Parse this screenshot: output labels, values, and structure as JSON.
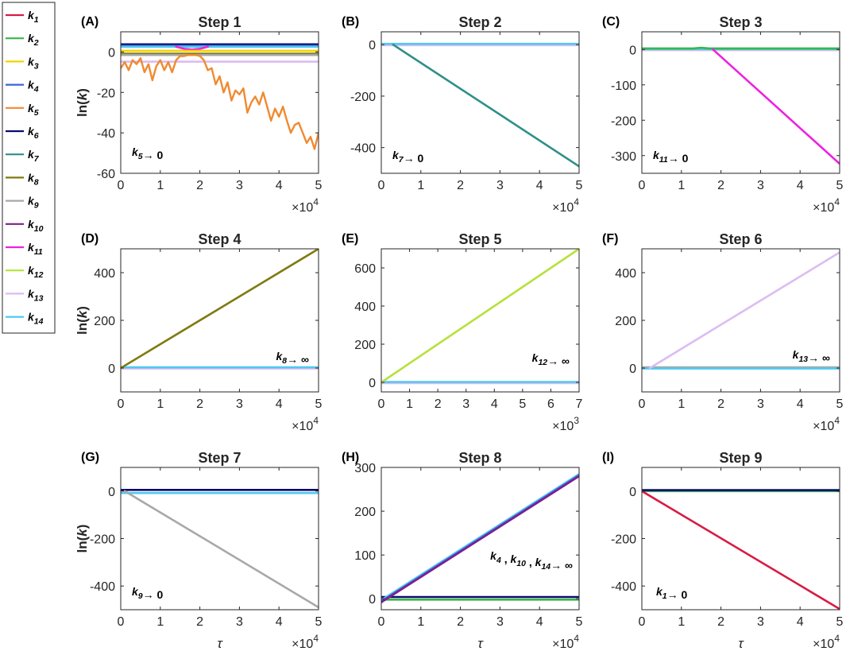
{
  "legend": [
    {
      "key": "k1",
      "base": "k",
      "sub": "1",
      "color": "#d81b45"
    },
    {
      "key": "k2",
      "base": "k",
      "sub": "2",
      "color": "#39b54a"
    },
    {
      "key": "k3",
      "base": "k",
      "sub": "3",
      "color": "#f2d400"
    },
    {
      "key": "k4",
      "base": "k",
      "sub": "4",
      "color": "#3d64d8"
    },
    {
      "key": "k5",
      "base": "k",
      "sub": "5",
      "color": "#f08a30"
    },
    {
      "key": "k6",
      "base": "k",
      "sub": "6",
      "color": "#0a0a6e"
    },
    {
      "key": "k7",
      "base": "k",
      "sub": "7",
      "color": "#2f8f8a"
    },
    {
      "key": "k8",
      "base": "k",
      "sub": "8",
      "color": "#807a10"
    },
    {
      "key": "k9",
      "base": "k",
      "sub": "9",
      "color": "#a8a8a8"
    },
    {
      "key": "k10",
      "base": "k",
      "sub": "10",
      "color": "#7d1e8f"
    },
    {
      "key": "k11",
      "base": "k",
      "sub": "11",
      "color": "#ee22dd"
    },
    {
      "key": "k12",
      "base": "k",
      "sub": "12",
      "color": "#b5e23a"
    },
    {
      "key": "k13",
      "base": "k",
      "sub": "13",
      "color": "#dcbcf2"
    },
    {
      "key": "k14",
      "base": "k",
      "sub": "14",
      "color": "#4fc9f0"
    }
  ],
  "chart_data": [
    {
      "id": "A",
      "label": "(A)",
      "title": "Step 1",
      "type": "line",
      "ylabel": "ln(k)",
      "xlabel": "",
      "xlim": [
        0,
        5
      ],
      "x_multiplier": "×10",
      "x_exponent": "4",
      "ylim": [
        -60,
        10
      ],
      "xticks": [
        0,
        1,
        2,
        3,
        4,
        5
      ],
      "yticks": [
        -60,
        -40,
        -20,
        0
      ],
      "annotation": {
        "base": "k",
        "sub": "5",
        "text": "→ 0"
      },
      "series": [
        {
          "key": "k6",
          "x": [
            0,
            5
          ],
          "y": [
            3.8,
            3.8
          ]
        },
        {
          "key": "k4",
          "x": [
            0,
            5
          ],
          "y": [
            3.0,
            3.0
          ]
        },
        {
          "key": "k14",
          "x": [
            0,
            5
          ],
          "y": [
            2.6,
            2.6
          ]
        },
        {
          "key": "k11",
          "x": [
            1.4,
            1.6,
            1.8,
            2.0,
            2.2
          ],
          "y": [
            2.6,
            1.6,
            1.2,
            1.6,
            2.6
          ]
        },
        {
          "key": "k3",
          "x": [
            0,
            5
          ],
          "y": [
            0.6,
            0.6
          ]
        },
        {
          "key": "k8",
          "x": [
            0,
            5
          ],
          "y": [
            -0.8,
            -0.8
          ]
        },
        {
          "key": "k9",
          "x": [
            0,
            5
          ],
          "y": [
            -1.5,
            -1.5
          ]
        },
        {
          "key": "k13",
          "x": [
            0,
            5
          ],
          "y": [
            -4.8,
            -4.8
          ]
        },
        {
          "key": "k5",
          "x": [
            0,
            0.1,
            0.2,
            0.3,
            0.4,
            0.5,
            0.6,
            0.7,
            0.8,
            0.9,
            1.0,
            1.1,
            1.2,
            1.3,
            1.4,
            1.5,
            1.6,
            1.7,
            1.8,
            1.9,
            2.0,
            2.1,
            2.2,
            2.3,
            2.4,
            2.5,
            2.6,
            2.7,
            2.8,
            2.9,
            3.0,
            3.1,
            3.2,
            3.3,
            3.4,
            3.5,
            3.6,
            3.7,
            3.8,
            3.9,
            4.0,
            4.1,
            4.2,
            4.3,
            4.4,
            4.5,
            4.6,
            4.7,
            4.8,
            4.9,
            5.0
          ],
          "y": [
            -8,
            -5,
            -9,
            -4,
            -6,
            -3,
            -10,
            -6,
            -14,
            -7,
            -4,
            -9,
            -5,
            -10,
            -4,
            -2,
            -2,
            -1.5,
            -1.5,
            -1.5,
            -2,
            -4,
            -9,
            -8,
            -16,
            -12,
            -20,
            -15,
            -24,
            -19,
            -21,
            -18,
            -30,
            -25,
            -22,
            -26,
            -20,
            -27,
            -34,
            -28,
            -32,
            -27,
            -34,
            -40,
            -36,
            -35,
            -40,
            -45,
            -42,
            -48,
            -40
          ]
        }
      ]
    },
    {
      "id": "B",
      "label": "(B)",
      "title": "Step 2",
      "type": "line",
      "ylabel": "",
      "xlabel": "",
      "xlim": [
        0,
        5
      ],
      "x_multiplier": "×10",
      "x_exponent": "4",
      "ylim": [
        -500,
        50
      ],
      "xticks": [
        0,
        1,
        2,
        3,
        4,
        5
      ],
      "yticks": [
        -400,
        -200,
        0
      ],
      "annotation": {
        "base": "k",
        "sub": "7",
        "text": "→ 0"
      },
      "series": [
        {
          "key": "k13",
          "x": [
            0,
            5
          ],
          "y": [
            -2,
            -2
          ]
        },
        {
          "key": "k14",
          "x": [
            0,
            5
          ],
          "y": [
            3,
            3
          ]
        },
        {
          "key": "k7",
          "x": [
            0.3,
            5
          ],
          "y": [
            0,
            -473
          ]
        }
      ]
    },
    {
      "id": "C",
      "label": "(C)",
      "title": "Step 3",
      "type": "line",
      "ylabel": "",
      "xlabel": "",
      "xlim": [
        0,
        5
      ],
      "x_multiplier": "×10",
      "x_exponent": "4",
      "ylim": [
        -350,
        50
      ],
      "xticks": [
        0,
        1,
        2,
        3,
        4,
        5
      ],
      "yticks": [
        -300,
        -200,
        -100,
        0
      ],
      "annotation": {
        "base": "k",
        "sub": "11",
        "text": "→ 0"
      },
      "series": [
        {
          "key": "k13",
          "x": [
            0,
            5
          ],
          "y": [
            -2,
            -2
          ]
        },
        {
          "key": "k14",
          "x": [
            0,
            5
          ],
          "y": [
            1,
            1
          ]
        },
        {
          "key": "k2",
          "x": [
            0,
            1.3,
            1.5,
            1.7,
            5
          ],
          "y": [
            3,
            3,
            5,
            3,
            3
          ]
        },
        {
          "key": "k11",
          "x": [
            1.8,
            5
          ],
          "y": [
            0,
            -323
          ]
        }
      ]
    },
    {
      "id": "D",
      "label": "(D)",
      "title": "Step 4",
      "type": "line",
      "ylabel": "ln(k)",
      "xlabel": "",
      "xlim": [
        0,
        5
      ],
      "x_multiplier": "×10",
      "x_exponent": "4",
      "ylim": [
        -100,
        500
      ],
      "xticks": [
        0,
        1,
        2,
        3,
        4,
        5
      ],
      "yticks": [
        0,
        200,
        400
      ],
      "annotation": {
        "base": "k",
        "sub": "8",
        "text": "→ ∞"
      },
      "series": [
        {
          "key": "k13",
          "x": [
            0,
            5
          ],
          "y": [
            -2,
            -2
          ]
        },
        {
          "key": "k14",
          "x": [
            0,
            5
          ],
          "y": [
            3,
            3
          ]
        },
        {
          "key": "k8",
          "x": [
            0,
            5
          ],
          "y": [
            0,
            500
          ]
        }
      ]
    },
    {
      "id": "E",
      "label": "(E)",
      "title": "Step 5",
      "type": "line",
      "ylabel": "",
      "xlabel": "",
      "xlim": [
        0,
        7
      ],
      "x_multiplier": "×10",
      "x_exponent": "3",
      "ylim": [
        -50,
        700
      ],
      "xticks": [
        0,
        1,
        2,
        3,
        4,
        5,
        6,
        7
      ],
      "yticks": [
        0,
        200,
        400,
        600
      ],
      "annotation": {
        "base": "k",
        "sub": "12",
        "text": "→ ∞"
      },
      "series": [
        {
          "key": "k13",
          "x": [
            0,
            7
          ],
          "y": [
            -4,
            -4
          ]
        },
        {
          "key": "k14",
          "x": [
            0,
            7
          ],
          "y": [
            2,
            2
          ]
        },
        {
          "key": "k12",
          "x": [
            0,
            7
          ],
          "y": [
            0,
            700
          ]
        }
      ]
    },
    {
      "id": "F",
      "label": "(F)",
      "title": "Step 6",
      "type": "line",
      "ylabel": "",
      "xlabel": "",
      "xlim": [
        0,
        5
      ],
      "x_multiplier": "×10",
      "x_exponent": "4",
      "ylim": [
        -100,
        500
      ],
      "xticks": [
        0,
        1,
        2,
        3,
        4,
        5
      ],
      "yticks": [
        0,
        200,
        400
      ],
      "annotation": {
        "base": "k",
        "sub": "13",
        "text": "→ ∞"
      },
      "series": [
        {
          "key": "k9",
          "x": [
            0,
            5
          ],
          "y": [
            3,
            3
          ]
        },
        {
          "key": "k14",
          "x": [
            0,
            5
          ],
          "y": [
            -2,
            -2
          ]
        },
        {
          "key": "k13",
          "x": [
            0.2,
            5
          ],
          "y": [
            0,
            485
          ]
        }
      ]
    },
    {
      "id": "G",
      "label": "(G)",
      "title": "Step 7",
      "type": "line",
      "ylabel": "ln(k)",
      "xlabel": "τ",
      "xlim": [
        0,
        5
      ],
      "x_multiplier": "×10",
      "x_exponent": "4",
      "ylim": [
        -500,
        100
      ],
      "xticks": [
        0,
        1,
        2,
        3,
        4,
        5
      ],
      "yticks": [
        -400,
        -200,
        0
      ],
      "annotation": {
        "base": "k",
        "sub": "9",
        "text": "→ 0"
      },
      "series": [
        {
          "key": "k14",
          "x": [
            0,
            5
          ],
          "y": [
            -8,
            -8
          ]
        },
        {
          "key": "k6",
          "x": [
            0,
            5
          ],
          "y": [
            5,
            5
          ]
        },
        {
          "key": "k9",
          "x": [
            0.1,
            5
          ],
          "y": [
            0,
            -490
          ]
        }
      ]
    },
    {
      "id": "H",
      "label": "(H)",
      "title": "Step 8",
      "type": "line",
      "ylabel": "",
      "xlabel": "τ",
      "xlim": [
        0,
        5
      ],
      "x_multiplier": "×10",
      "x_exponent": "4",
      "ylim": [
        -25,
        300
      ],
      "xticks": [
        0,
        1,
        2,
        3,
        4,
        5
      ],
      "yticks": [
        0,
        100,
        200,
        300
      ],
      "annotation": {
        "parts": [
          {
            "base": "k",
            "sub": "4"
          },
          {
            "text": " , "
          },
          {
            "base": "k",
            "sub": "10"
          },
          {
            "text": " , "
          },
          {
            "base": "k",
            "sub": "14"
          },
          {
            "text": "→ ∞"
          }
        ]
      },
      "series": [
        {
          "key": "k2",
          "x": [
            0,
            5
          ],
          "y": [
            -2,
            -2
          ]
        },
        {
          "key": "k6",
          "x": [
            0,
            5
          ],
          "y": [
            4,
            4
          ]
        },
        {
          "key": "k14",
          "x": [
            0,
            5
          ],
          "y": [
            -3,
            285
          ]
        },
        {
          "key": "k4",
          "x": [
            0,
            5
          ],
          "y": [
            -6,
            282
          ]
        },
        {
          "key": "k10",
          "x": [
            0,
            5
          ],
          "y": [
            -8,
            280
          ]
        }
      ]
    },
    {
      "id": "I",
      "label": "(I)",
      "title": "Step 9",
      "type": "line",
      "ylabel": "",
      "xlabel": "τ",
      "xlim": [
        0,
        5
      ],
      "x_multiplier": "×10",
      "x_exponent": "4",
      "ylim": [
        -500,
        100
      ],
      "xticks": [
        0,
        1,
        2,
        3,
        4,
        5
      ],
      "yticks": [
        -400,
        -200,
        0
      ],
      "annotation": {
        "base": "k",
        "sub": "1",
        "text": "→ 0"
      },
      "series": [
        {
          "key": "k2",
          "x": [
            0,
            5
          ],
          "y": [
            0,
            0
          ]
        },
        {
          "key": "k6",
          "x": [
            0,
            5
          ],
          "y": [
            4,
            4
          ]
        },
        {
          "key": "k1",
          "x": [
            0,
            5
          ],
          "y": [
            0,
            -497
          ]
        }
      ]
    }
  ]
}
